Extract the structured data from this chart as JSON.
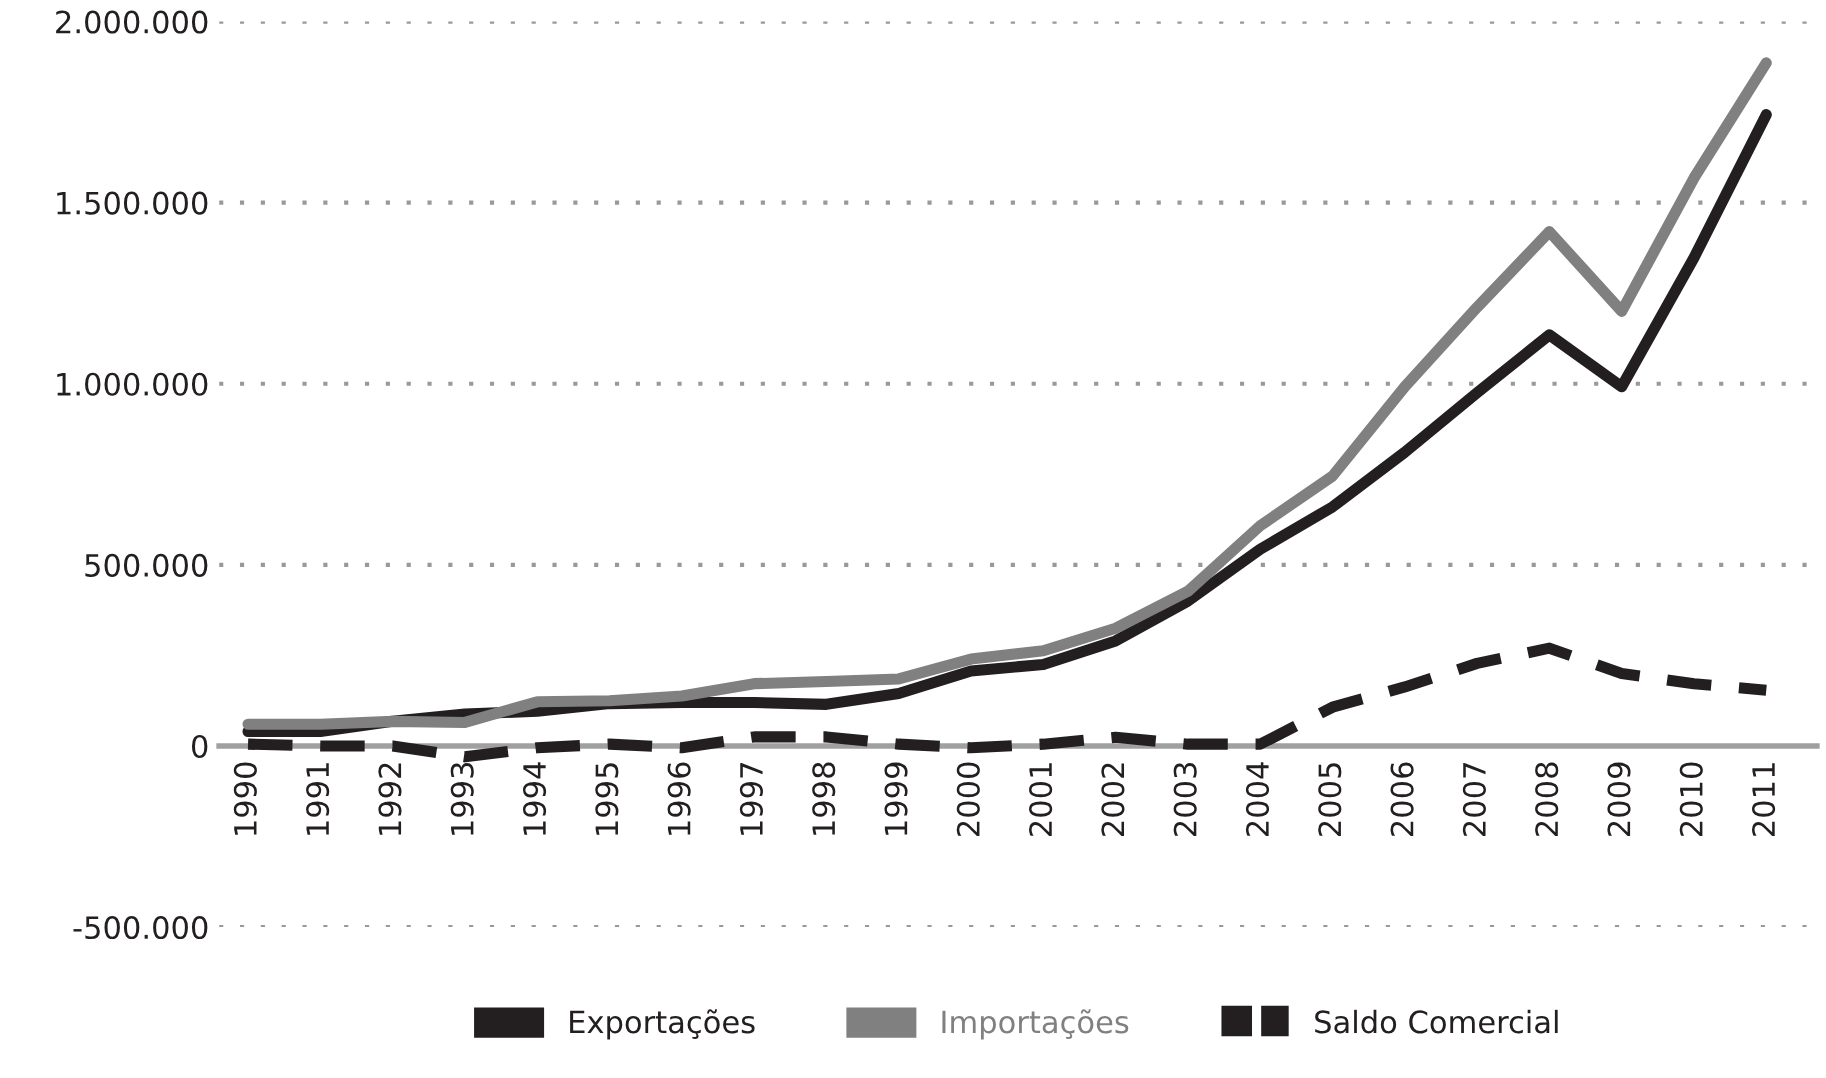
{
  "chart_data": {
    "type": "line",
    "categories": [
      "1990",
      "1991",
      "1992",
      "1993",
      "1994",
      "1995",
      "1996",
      "1997",
      "1998",
      "1999",
      "2000",
      "2001",
      "2002",
      "2003",
      "2004",
      "2005",
      "2006",
      "2007",
      "2008",
      "2009",
      "2010",
      "2011"
    ],
    "series": [
      {
        "name": "Exportações",
        "color": "#231f20",
        "line_style": "solid",
        "values": [
          40000,
          40000,
          68000,
          88000,
          96000,
          117000,
          120000,
          120000,
          115000,
          145000,
          207000,
          225000,
          290000,
          400000,
          543000,
          660000,
          811000,
          975000,
          1135000,
          992000,
          1348000,
          1743000
        ]
      },
      {
        "name": "Importações",
        "color": "#808080",
        "line_style": "solid",
        "values": [
          60000,
          60000,
          68000,
          65000,
          122000,
          125000,
          138000,
          172000,
          178000,
          185000,
          240000,
          263000,
          325000,
          427000,
          608000,
          745000,
          992000,
          1211000,
          1420000,
          1200000,
          1568000,
          1886000
        ]
      },
      {
        "name": "Saldo Comercial",
        "color": "#231f20",
        "line_style": "dashed",
        "values": [
          5000,
          0,
          0,
          -30000,
          -5000,
          5000,
          -5000,
          25000,
          25000,
          5000,
          -5000,
          5000,
          24000,
          5000,
          5000,
          107000,
          163000,
          228000,
          270000,
          200000,
          172000,
          154000
        ]
      }
    ],
    "ylim": [
      -500000,
      2000000
    ],
    "yticks": [
      {
        "value": -500000,
        "label": "-500.000"
      },
      {
        "value": 0,
        "label": "0"
      },
      {
        "value": 500000,
        "label": "500.000"
      },
      {
        "value": 1000000,
        "label": "1.000.000"
      },
      {
        "value": 1500000,
        "label": "1.500.000"
      },
      {
        "value": 2000000,
        "label": "2.000.000"
      }
    ],
    "grid": "y",
    "legend": "bottom",
    "marker": "none"
  }
}
